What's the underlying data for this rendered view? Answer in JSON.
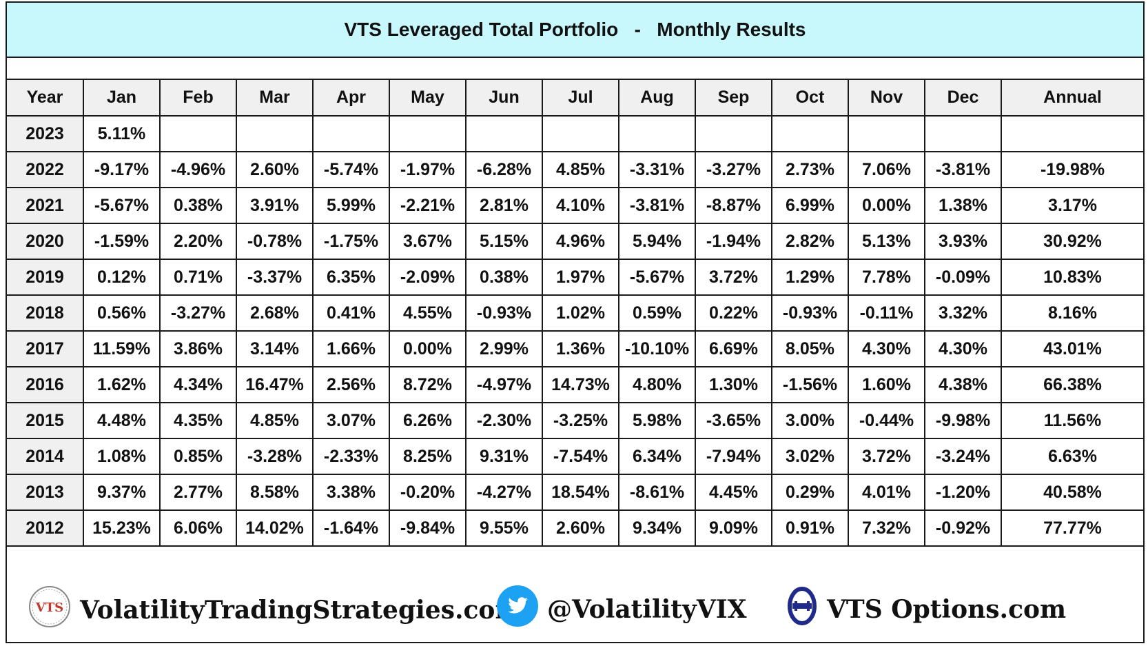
{
  "title": {
    "text": "VTS Leveraged Total Portfolio   -   Monthly Results"
  },
  "table": {
    "headers": [
      "Year",
      "Jan",
      "Feb",
      "Mar",
      "Apr",
      "May",
      "Jun",
      "Jul",
      "Aug",
      "Sep",
      "Oct",
      "Nov",
      "Dec",
      "Annual"
    ],
    "rows": [
      [
        "2023",
        "5.11%",
        "",
        "",
        "",
        "",
        "",
        "",
        "",
        "",
        "",
        "",
        "",
        ""
      ],
      [
        "2022",
        "-9.17%",
        "-4.96%",
        "2.60%",
        "-5.74%",
        "-1.97%",
        "-6.28%",
        "4.85%",
        "-3.31%",
        "-3.27%",
        "2.73%",
        "7.06%",
        "-3.81%",
        "-19.98%"
      ],
      [
        "2021",
        "-5.67%",
        "0.38%",
        "3.91%",
        "5.99%",
        "-2.21%",
        "2.81%",
        "4.10%",
        "-3.81%",
        "-8.87%",
        "6.99%",
        "0.00%",
        "1.38%",
        "3.17%"
      ],
      [
        "2020",
        "-1.59%",
        "2.20%",
        "-0.78%",
        "-1.75%",
        "3.67%",
        "5.15%",
        "4.96%",
        "5.94%",
        "-1.94%",
        "2.82%",
        "5.13%",
        "3.93%",
        "30.92%"
      ],
      [
        "2019",
        "0.12%",
        "0.71%",
        "-3.37%",
        "6.35%",
        "-2.09%",
        "0.38%",
        "1.97%",
        "-5.67%",
        "3.72%",
        "1.29%",
        "7.78%",
        "-0.09%",
        "10.83%"
      ],
      [
        "2018",
        "0.56%",
        "-3.27%",
        "2.68%",
        "0.41%",
        "4.55%",
        "-0.93%",
        "1.02%",
        "0.59%",
        "0.22%",
        "-0.93%",
        "-0.11%",
        "3.32%",
        "8.16%"
      ],
      [
        "2017",
        "11.59%",
        "3.86%",
        "3.14%",
        "1.66%",
        "0.00%",
        "2.99%",
        "1.36%",
        "-10.10%",
        "6.69%",
        "8.05%",
        "4.30%",
        "4.30%",
        "43.01%"
      ],
      [
        "2016",
        "1.62%",
        "4.34%",
        "16.47%",
        "2.56%",
        "8.72%",
        "-4.97%",
        "14.73%",
        "4.80%",
        "1.30%",
        "-1.56%",
        "1.60%",
        "4.38%",
        "66.38%"
      ],
      [
        "2015",
        "4.48%",
        "4.35%",
        "4.85%",
        "3.07%",
        "6.26%",
        "-2.30%",
        "-3.25%",
        "5.98%",
        "-3.65%",
        "3.00%",
        "-0.44%",
        "-9.98%",
        "11.56%"
      ],
      [
        "2014",
        "1.08%",
        "0.85%",
        "-3.28%",
        "-2.33%",
        "8.25%",
        "9.31%",
        "-7.54%",
        "6.34%",
        "-7.94%",
        "3.02%",
        "3.72%",
        "-3.24%",
        "6.63%"
      ],
      [
        "2013",
        "9.37%",
        "2.77%",
        "8.58%",
        "3.38%",
        "-0.20%",
        "-4.27%",
        "18.54%",
        "-8.61%",
        "4.45%",
        "0.29%",
        "4.01%",
        "-1.20%",
        "40.58%"
      ],
      [
        "2012",
        "15.23%",
        "6.06%",
        "14.02%",
        "-1.64%",
        "-9.84%",
        "9.55%",
        "2.60%",
        "9.34%",
        "9.09%",
        "0.91%",
        "7.32%",
        "-0.92%",
        "77.77%"
      ]
    ]
  },
  "footer": {
    "site": "VolatilityTradingStrategies.com",
    "vts_logo_text": "VTS",
    "twitter": "@VolatilityVIX",
    "options": "VTS Options.com"
  },
  "colors": {
    "title_bg": "#c8f7fc",
    "header_bg": "#f0f0f0",
    "twitter_blue": "#1da1f2",
    "logo_red": "#c0392b",
    "options_logo_navy": "#1f2a8a"
  },
  "icons": {
    "vts_logo": "vts-seal-icon",
    "twitter": "twitter-bird-icon",
    "options_logo": "theta-icon"
  }
}
